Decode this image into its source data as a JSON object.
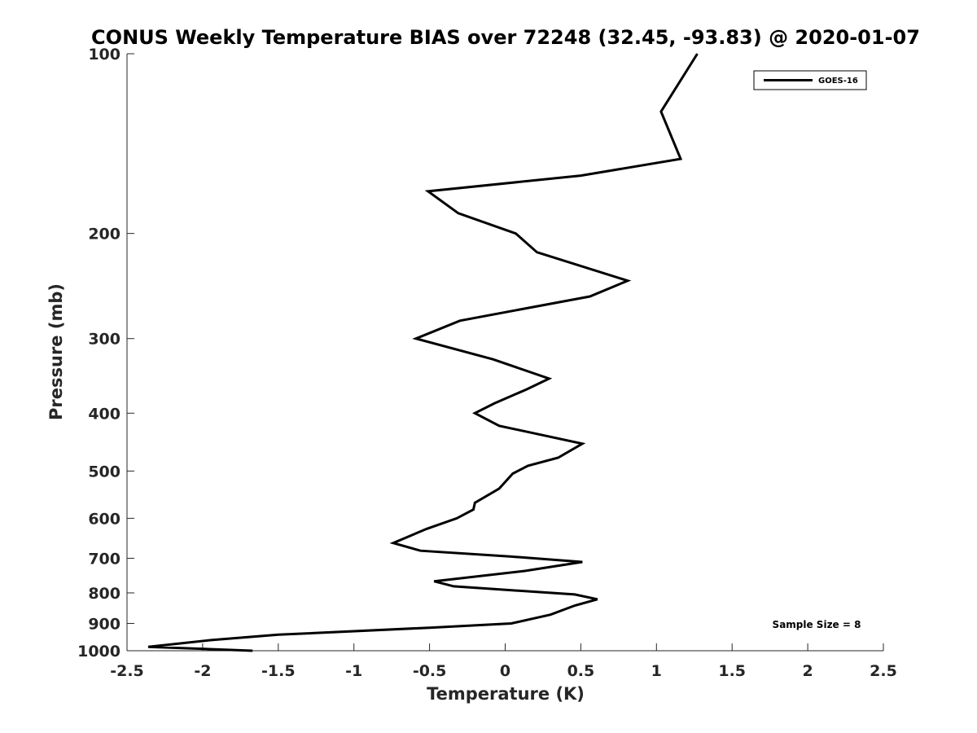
{
  "chart_data": {
    "type": "line",
    "title": "CONUS Weekly Temperature BIAS over 72248 (32.45, -93.83) @ 2020-01-07",
    "xlabel": "Temperature (K)",
    "ylabel": "Pressure (mb)",
    "xlim": [
      -2.5,
      2.5
    ],
    "ylim": [
      100,
      1000
    ],
    "y_scale": "log",
    "y_reversed": true,
    "x_ticks": [
      -2.5,
      -2,
      -1.5,
      -1,
      -0.5,
      0,
      0.5,
      1,
      1.5,
      2,
      2.5
    ],
    "x_tick_labels": [
      "-2.5",
      "-2",
      "-1.5",
      "-1",
      "-0.5",
      "0",
      "0.5",
      "1",
      "1.5",
      "2",
      "2.5"
    ],
    "y_ticks": [
      100,
      200,
      300,
      400,
      500,
      600,
      700,
      800,
      900,
      1000
    ],
    "y_tick_labels": [
      "100",
      "200",
      "300",
      "400",
      "500",
      "600",
      "700",
      "800",
      "900",
      "1000"
    ],
    "grid": false,
    "legend_position": "top-right",
    "annotation": "Sample Size = 8",
    "series": [
      {
        "name": "GOES-16",
        "color": "#000000",
        "x": [
          1.27,
          1.03,
          1.16,
          0.5,
          -0.51,
          -0.31,
          0.07,
          0.21,
          0.81,
          0.56,
          -0.3,
          -0.59,
          -0.08,
          0.29,
          0.14,
          -0.07,
          -0.2,
          -0.04,
          0.51,
          0.35,
          0.15,
          0.05,
          -0.04,
          -0.2,
          -0.21,
          -0.32,
          -0.52,
          -0.74,
          -0.56,
          0.03,
          0.51,
          0.13,
          -0.47,
          -0.34,
          0.46,
          0.61,
          0.46,
          0.3,
          0.04,
          -0.5,
          -1.5,
          -1.95,
          -2.36,
          -1.67
        ],
        "y": [
          100,
          125,
          150,
          160,
          170,
          185,
          200,
          215,
          240,
          255,
          280,
          300,
          325,
          350,
          365,
          385,
          400,
          420,
          450,
          475,
          490,
          505,
          535,
          565,
          580,
          600,
          625,
          660,
          680,
          695,
          710,
          735,
          765,
          780,
          805,
          820,
          840,
          870,
          900,
          915,
          940,
          960,
          985,
          1000
        ]
      }
    ]
  }
}
